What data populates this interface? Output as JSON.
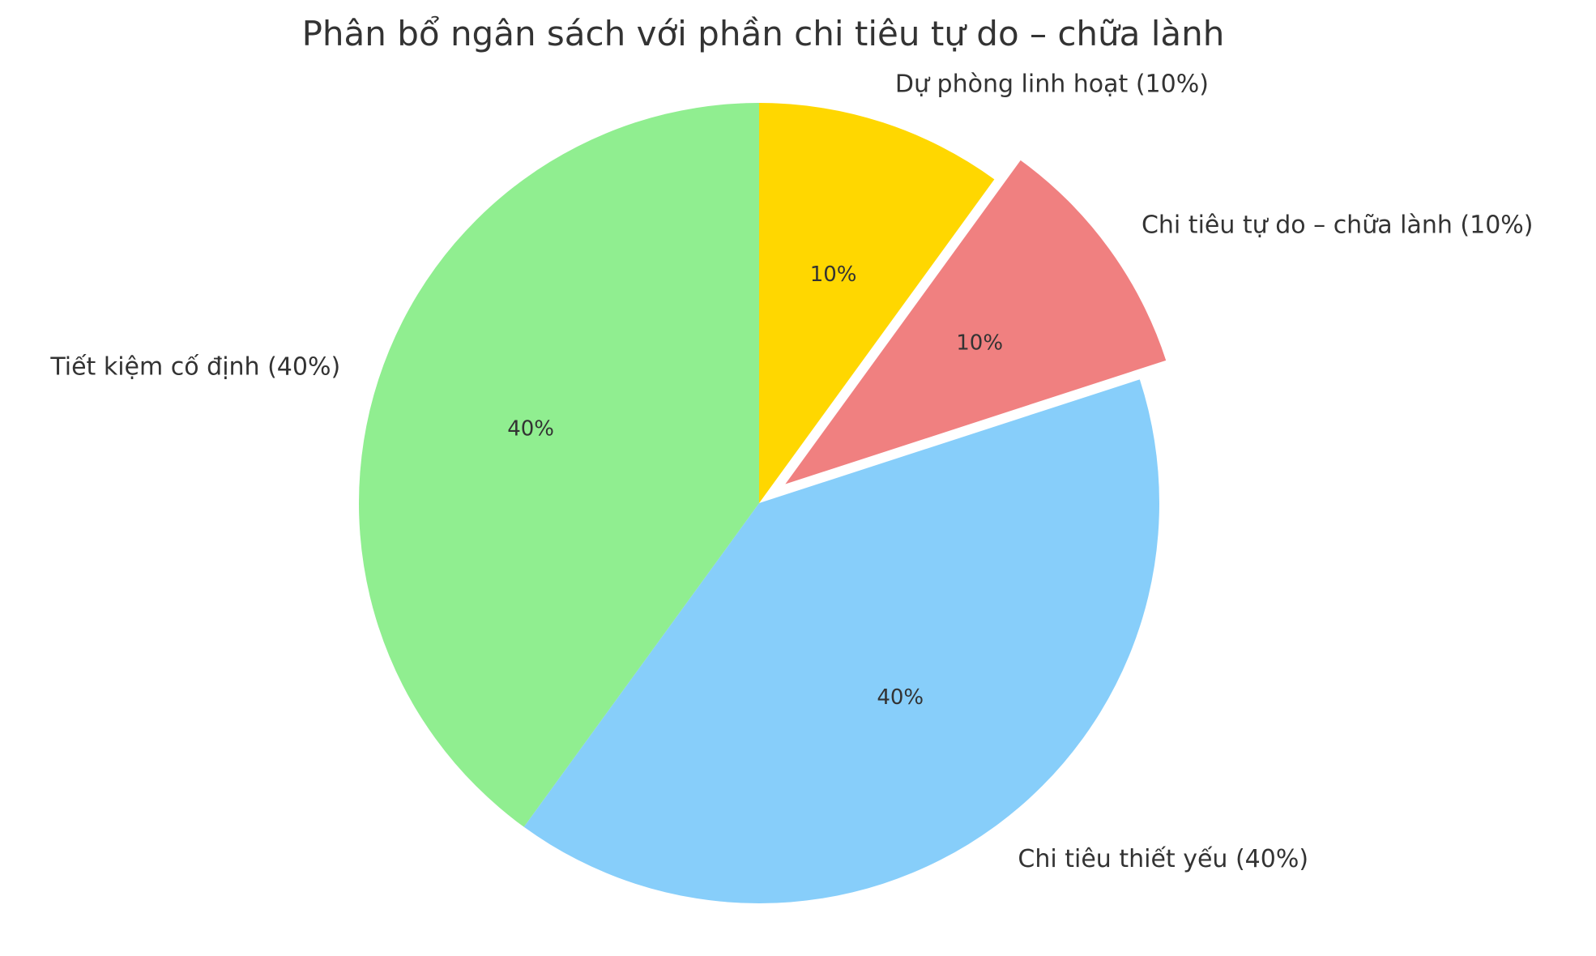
{
  "chart_data": {
    "type": "pie",
    "title": "Phân bổ ngân sách với phần chi tiêu tự do – chữa lành",
    "slices": [
      {
        "label": "Dự phòng linh hoạt (10%)",
        "value": 10,
        "pct_text": "10%",
        "color": "#FFD700",
        "exploded": false
      },
      {
        "label": "Chi tiêu tự do – chữa lành (10%)",
        "value": 10,
        "pct_text": "10%",
        "color": "#F08080",
        "exploded": true
      },
      {
        "label": "Chi tiêu thiết yếu (40%)",
        "value": 40,
        "pct_text": "40%",
        "color": "#87CEFA",
        "exploded": false
      },
      {
        "label": "Tiết kiệm cố định (40%)",
        "value": 40,
        "pct_text": "40%",
        "color": "#90EE90",
        "exploded": false
      }
    ],
    "start_angle": "top",
    "direction": "clockwise",
    "legend": "none"
  }
}
